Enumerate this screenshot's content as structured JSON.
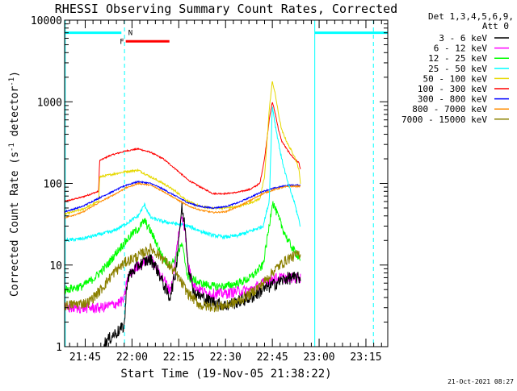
{
  "chart_data": {
    "type": "line",
    "title": "RHESSI Observing Summary Count Rates, Corrected",
    "xlabel": "Start Time (19-Nov-05 21:38:22)",
    "ylabel_main": "Corrected Count Rate (s",
    "ylabel_sup1": "-1",
    "ylabel_mid": " detector",
    "ylabel_sup2": "-1",
    "ylabel_end": ")",
    "timestamp": "21-Oct-2021 08:27",
    "yscale": "log",
    "ylim": [
      1,
      10000
    ],
    "xlim_minutes": [
      1298.4,
      1402.0
    ],
    "x_unit": "minutes since 00:00 on 19-Nov-05",
    "y_ticks": [
      {
        "value": 1,
        "label": "1"
      },
      {
        "value": 10,
        "label": "10"
      },
      {
        "value": 100,
        "label": "100"
      },
      {
        "value": 1000,
        "label": "1000"
      },
      {
        "value": 10000,
        "label": "10000"
      }
    ],
    "x_ticks": [
      {
        "value": 1305,
        "label": "21:45"
      },
      {
        "value": 1320,
        "label": "22:00"
      },
      {
        "value": 1335,
        "label": "22:15"
      },
      {
        "value": 1350,
        "label": "22:30"
      },
      {
        "value": 1365,
        "label": "22:45"
      },
      {
        "value": 1380,
        "label": "23:00"
      },
      {
        "value": 1395,
        "label": "23:15"
      }
    ],
    "legend": {
      "placement": "right",
      "header": [
        "Det 1,3,4,5,6,9,",
        "Att 0"
      ],
      "entries": [
        {
          "label": "3 - 6 keV",
          "color": "#000000"
        },
        {
          "label": "6 - 12 keV",
          "color": "#ff00ff"
        },
        {
          "label": "12 - 25 keV",
          "color": "#00ff00"
        },
        {
          "label": "25 - 50 keV",
          "color": "#00ffff"
        },
        {
          "label": "50 - 100 keV",
          "color": "#e6d800"
        },
        {
          "label": "100 - 300 keV",
          "color": "#ff0000"
        },
        {
          "label": "300 - 800 keV",
          "color": "#0000ff"
        },
        {
          "label": "800 - 7000 keV",
          "color": "#ff8c00"
        },
        {
          "label": "7000 - 15000 keV",
          "color": "#8b8000"
        }
      ]
    },
    "flags": [
      {
        "label": "F",
        "color": "#ff0000",
        "start": 1318.0,
        "end": 1332.0,
        "value": 5500
      },
      {
        "label": "N",
        "color": "#00ffff",
        "start": 1317.5,
        "end": 1317.5,
        "value": 7000
      }
    ],
    "eclipse_bars": [
      {
        "start": 1298.4,
        "end": 1316.6,
        "value": 7000
      },
      {
        "start": 1378.6,
        "end": 1402.0,
        "value": 7000
      }
    ],
    "vertical_lines": [
      {
        "x": 1298.6,
        "style": "solid",
        "color": "#00ffff"
      },
      {
        "x": 1317.6,
        "style": "dashed",
        "color": "#00ffff"
      },
      {
        "x": 1378.6,
        "style": "solid",
        "color": "#00ffff"
      },
      {
        "x": 1397.4,
        "style": "dashed",
        "color": "#00ffff"
      }
    ],
    "series": [
      {
        "color": "#ff0000",
        "noise": 0.02,
        "x": [
          1298.4,
          1304,
          1309.3,
          1309.6,
          1313,
          1318,
          1322,
          1326,
          1330,
          1334,
          1338,
          1342,
          1346,
          1350,
          1354,
          1358,
          1361,
          1362.5,
          1364,
          1365,
          1366,
          1367,
          1368,
          1370,
          1372,
          1373.5,
          1374
        ],
        "values": [
          60,
          68,
          80,
          190,
          220,
          250,
          265,
          240,
          200,
          150,
          110,
          90,
          75,
          75,
          78,
          85,
          100,
          200,
          600,
          1000,
          700,
          450,
          330,
          250,
          200,
          180,
          150
        ]
      },
      {
        "color": "#e6d800",
        "noise": 0.03,
        "x": [
          1298.4,
          1304,
          1309.3,
          1309.6,
          1314,
          1318,
          1322,
          1326,
          1330,
          1334,
          1338,
          1342,
          1346,
          1350,
          1354,
          1358,
          1361,
          1362.5,
          1364,
          1365,
          1366,
          1367,
          1368,
          1370,
          1372,
          1373.5,
          1374
        ],
        "values": [
          42,
          48,
          60,
          120,
          130,
          140,
          145,
          120,
          100,
          80,
          60,
          52,
          50,
          50,
          52,
          58,
          65,
          120,
          800,
          1800,
          1200,
          700,
          450,
          300,
          220,
          150,
          100
        ]
      },
      {
        "color": "#0000ff",
        "noise": 0.02,
        "x": [
          1298.4,
          1304,
          1310,
          1314,
          1318,
          1322,
          1326,
          1330,
          1334,
          1338,
          1342,
          1346,
          1350,
          1354,
          1358,
          1362,
          1366,
          1370,
          1374
        ],
        "values": [
          45,
          52,
          68,
          80,
          95,
          105,
          100,
          85,
          70,
          58,
          52,
          50,
          52,
          58,
          68,
          80,
          88,
          95,
          95
        ]
      },
      {
        "color": "#ff8c00",
        "noise": 0.02,
        "x": [
          1298.4,
          1304,
          1310,
          1314,
          1318,
          1322,
          1326,
          1330,
          1334,
          1338,
          1342,
          1346,
          1350,
          1354,
          1358,
          1362,
          1366,
          1370,
          1374
        ],
        "values": [
          38,
          44,
          60,
          72,
          88,
          100,
          95,
          80,
          65,
          53,
          47,
          44,
          45,
          52,
          62,
          75,
          85,
          92,
          92
        ]
      },
      {
        "color": "#00ffff",
        "noise": 0.05,
        "x": [
          1298.4,
          1304,
          1310,
          1314,
          1318,
          1322,
          1324,
          1326,
          1330,
          1334,
          1338,
          1342,
          1346,
          1350,
          1354,
          1358,
          1362,
          1364,
          1365,
          1366,
          1368,
          1370,
          1372,
          1374
        ],
        "values": [
          20,
          21,
          24,
          26,
          32,
          40,
          55,
          38,
          34,
          32,
          30,
          26,
          23,
          22,
          23,
          26,
          30,
          60,
          900,
          500,
          200,
          100,
          60,
          30
        ]
      },
      {
        "color": "#00ff00",
        "noise": 0.12,
        "x": [
          1298.4,
          1304,
          1308,
          1312,
          1316,
          1320,
          1322,
          1324,
          1326,
          1328,
          1330,
          1332,
          1334,
          1336,
          1338,
          1342,
          1346,
          1350,
          1354,
          1358,
          1362,
          1364,
          1365,
          1366,
          1368,
          1370,
          1372,
          1374
        ],
        "values": [
          5,
          5.5,
          7,
          10,
          16,
          24,
          28,
          35,
          26,
          18,
          12,
          10,
          12,
          18,
          7,
          6,
          5.5,
          5.5,
          6,
          7,
          10,
          30,
          60,
          48,
          30,
          20,
          15,
          12
        ]
      },
      {
        "color": "#ff00ff",
        "noise": 0.15,
        "x": [
          1298.4,
          1310,
          1314,
          1316,
          1317.5,
          1318.5,
          1322,
          1326,
          1328,
          1330,
          1332,
          1333,
          1334,
          1335,
          1336,
          1337,
          1338,
          1340,
          1344,
          1350,
          1354,
          1358,
          1362,
          1366,
          1370,
          1374
        ],
        "values": [
          3,
          3,
          3.3,
          3.5,
          3.8,
          7,
          10,
          12,
          9,
          7,
          5,
          6,
          12,
          25,
          40,
          28,
          10,
          5.5,
          4.5,
          4.5,
          4.8,
          5,
          6,
          7,
          7,
          7
        ]
      },
      {
        "color": "#000000",
        "noise": 0.18,
        "x": [
          1311,
          1314,
          1316,
          1317.5,
          1318.5,
          1322,
          1326,
          1328,
          1330,
          1332,
          1334,
          1335,
          1336,
          1337,
          1338,
          1340,
          1344,
          1350,
          1354,
          1358,
          1362,
          1366,
          1370,
          1374
        ],
        "values": [
          1.1,
          1.4,
          1.6,
          1.8,
          7,
          10,
          12,
          9,
          6,
          4,
          8,
          22,
          50,
          30,
          10,
          4.5,
          3.8,
          3.2,
          3.6,
          4,
          5,
          6,
          7,
          7
        ]
      },
      {
        "color": "#8b8000",
        "noise": 0.15,
        "x": [
          1298.4,
          1306,
          1310,
          1314,
          1318,
          1322,
          1326,
          1328,
          1330,
          1334,
          1338,
          1342,
          1346,
          1350,
          1354,
          1358,
          1362,
          1366,
          1370,
          1374
        ],
        "values": [
          3.2,
          3.5,
          5,
          8,
          11,
          13,
          16,
          14,
          12,
          8,
          4.5,
          3.2,
          3.1,
          3.2,
          3.6,
          4.5,
          6,
          9,
          12,
          14
        ]
      }
    ]
  }
}
